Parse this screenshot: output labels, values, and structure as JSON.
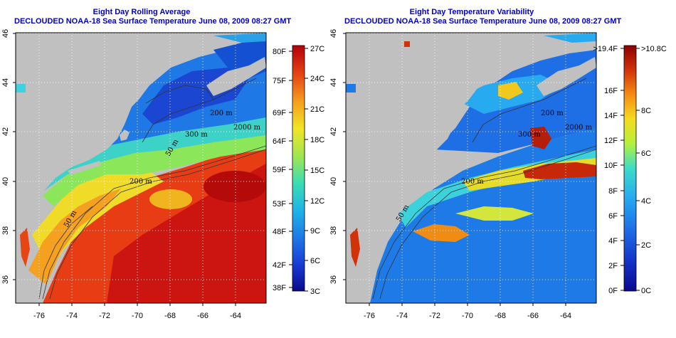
{
  "left_panel": {
    "title": "Eight Day Rolling Average",
    "subtitle": "DECLOUDED NOAA-18 Sea Surface Temperature June 08, 2009 08:27 GMT",
    "colorbar_f": [
      "80F",
      "75F",
      "69F",
      "64F",
      "59F",
      "53F",
      "48F",
      "42F",
      "38F"
    ],
    "colorbar_c": [
      "27C",
      "24C",
      "21C",
      "18C",
      "15C",
      "12C",
      "9C",
      "6C",
      "3C"
    ],
    "contour_labels": [
      "200 m",
      "50 m",
      "300 m",
      "2000 m",
      "50 m",
      "200 m"
    ]
  },
  "right_panel": {
    "title": "Eight Day Temperature Variability",
    "subtitle": "DECLOUDED NOAA-18 Sea Surface Temperature June 08, 2009 08:27 GMT",
    "colorbar_f": [
      ">19.4F",
      "16F",
      "14F",
      "12F",
      "10F",
      "8F",
      "6F",
      "4F",
      "2F",
      "0F"
    ],
    "colorbar_c": [
      ">10.8C",
      "8C",
      "6C",
      "4C",
      "2C",
      "0C"
    ],
    "contour_labels": [
      "200 m",
      "300 m",
      "2000 m",
      "200 m",
      "50 m"
    ]
  },
  "axes": {
    "lon_ticks": [
      "-76",
      "-74",
      "-72",
      "-70",
      "-68",
      "-66",
      "-64"
    ],
    "lat_ticks": [
      "46",
      "44",
      "42",
      "40",
      "38",
      "36"
    ]
  },
  "colors": {
    "land": "#c0c0c0",
    "title": "#0000cc",
    "sst_ramp": [
      "#0a0a8c",
      "#1a3cd6",
      "#1e7ae6",
      "#20b4e6",
      "#3cdcb4",
      "#a0e650",
      "#f0e628",
      "#f5a01e",
      "#e64614",
      "#b4000a"
    ],
    "var_ramp": [
      "#0a0a8c",
      "#1432c8",
      "#1e6ee6",
      "#28aaf0",
      "#3cdcc8",
      "#b4f03c",
      "#f5dc1e",
      "#f58c14",
      "#d2320a",
      "#8c0000"
    ]
  }
}
